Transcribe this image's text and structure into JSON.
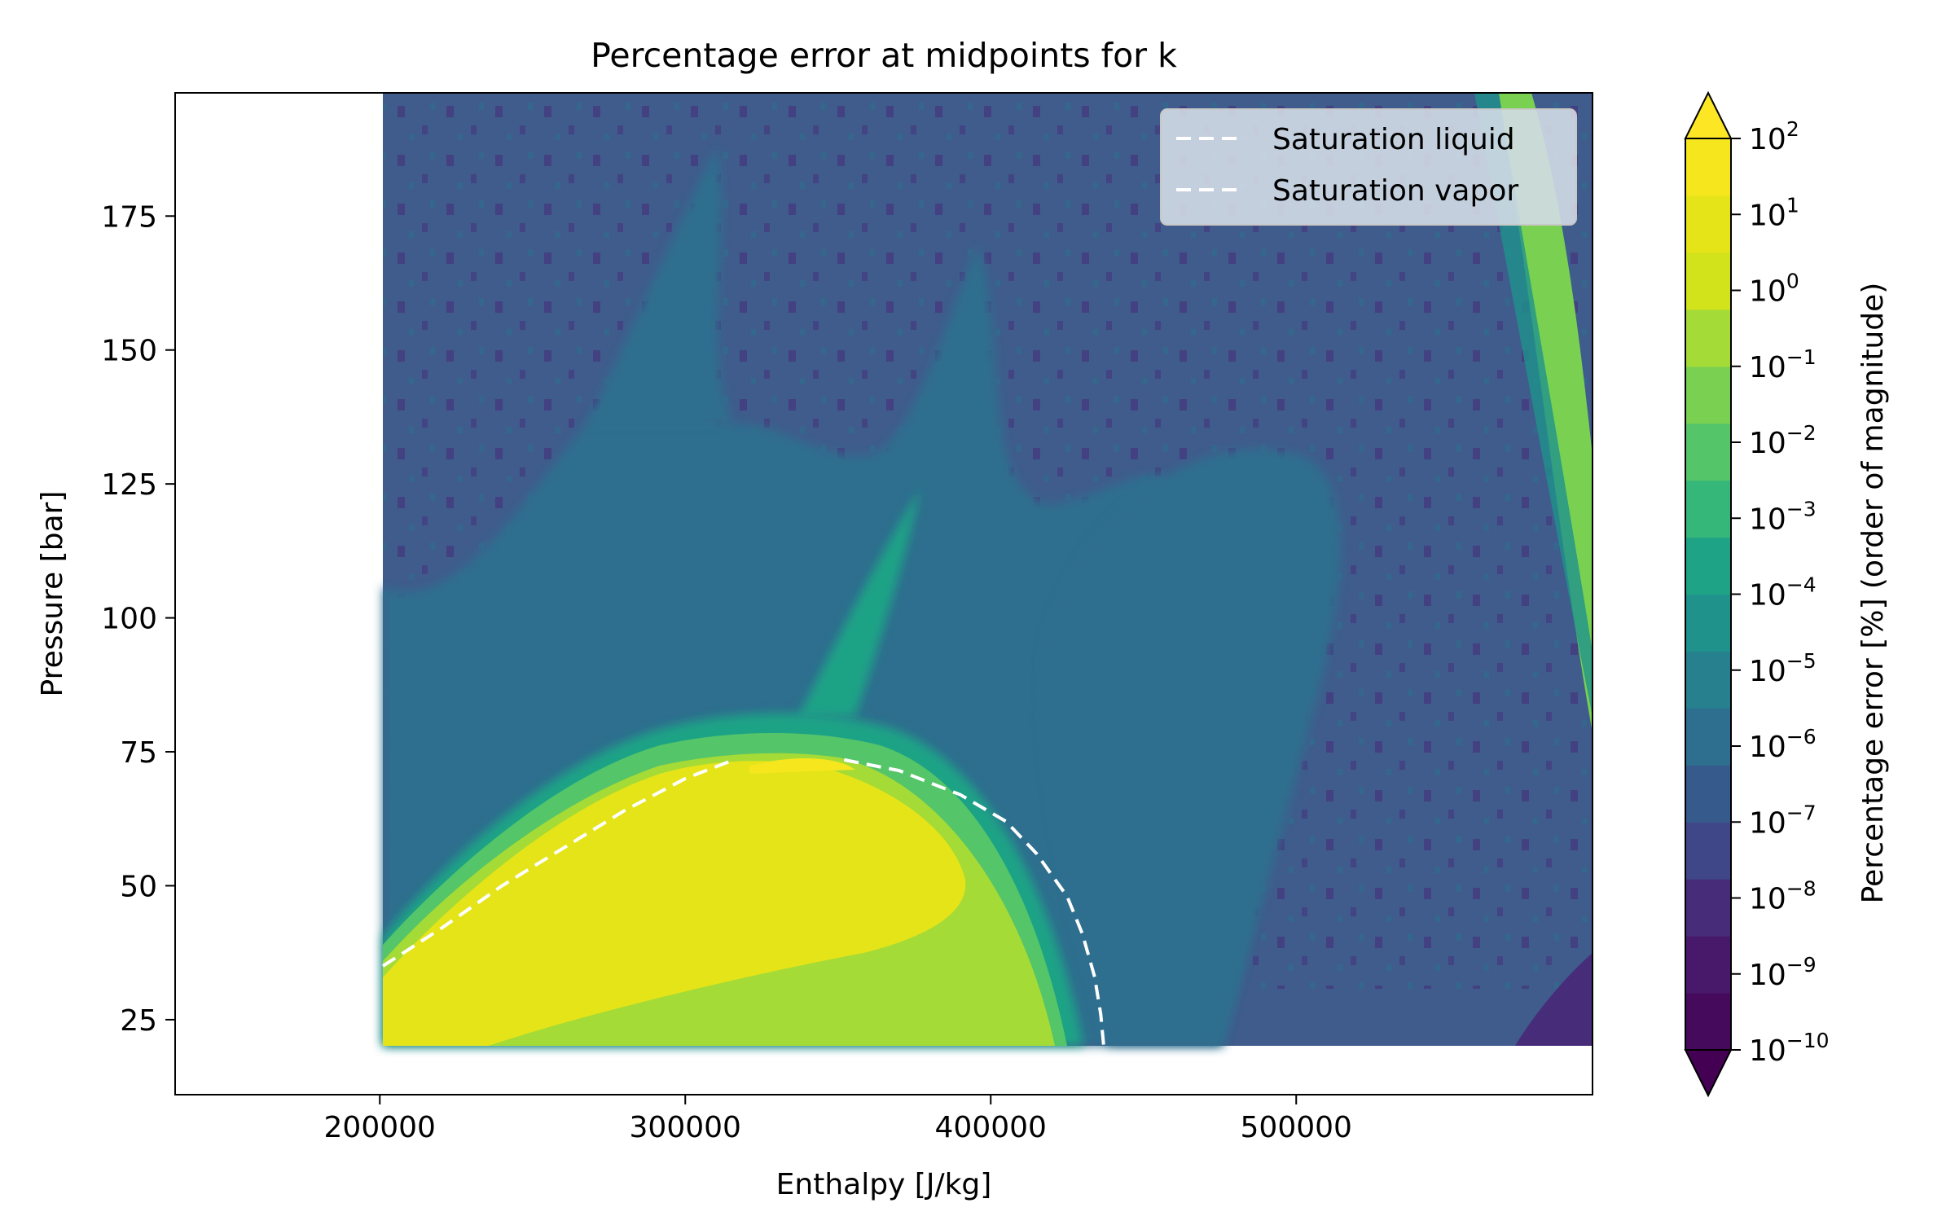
{
  "chart_data": {
    "type": "heatmap",
    "title": "Percentage error at midpoints for k",
    "xlabel": "Enthalpy [J/kg]",
    "ylabel": "Pressure [bar]",
    "xlim": [
      133000,
      597000
    ],
    "ylim": [
      11,
      198
    ],
    "data_xrange": [
      201000,
      597000
    ],
    "data_yrange": [
      20,
      198
    ],
    "x_ticks": [
      {
        "value": 200000,
        "label": "200000"
      },
      {
        "value": 300000,
        "label": "300000"
      },
      {
        "value": 400000,
        "label": "400000"
      },
      {
        "value": 500000,
        "label": "500000"
      }
    ],
    "y_ticks": [
      {
        "value": 25,
        "label": "25"
      },
      {
        "value": 50,
        "label": "50"
      },
      {
        "value": 75,
        "label": "75"
      },
      {
        "value": 100,
        "label": "100"
      },
      {
        "value": 125,
        "label": "125"
      },
      {
        "value": 150,
        "label": "150"
      },
      {
        "value": 175,
        "label": "175"
      }
    ],
    "grid": false,
    "legend": {
      "placement": "upper right",
      "entries": [
        {
          "label": "Saturation liquid",
          "color": "#ffffff",
          "style": "dashed"
        },
        {
          "label": "Saturation vapor",
          "color": "#ffffff",
          "style": "dashed"
        }
      ]
    },
    "colorbar": {
      "label": "Percentage error [%] (order of magnitude)",
      "scale": "log",
      "extend": "both",
      "levels": [
        {
          "base": "10",
          "exp": "−10",
          "value": -10
        },
        {
          "base": "10",
          "exp": "−9",
          "value": -9
        },
        {
          "base": "10",
          "exp": "−8",
          "value": -8
        },
        {
          "base": "10",
          "exp": "−7",
          "value": -7
        },
        {
          "base": "10",
          "exp": "−6",
          "value": -6
        },
        {
          "base": "10",
          "exp": "−5",
          "value": -5
        },
        {
          "base": "10",
          "exp": "−4",
          "value": -4
        },
        {
          "base": "10",
          "exp": "−3",
          "value": -3
        },
        {
          "base": "10",
          "exp": "−2",
          "value": -2
        },
        {
          "base": "10",
          "exp": "−1",
          "value": -1
        },
        {
          "base": "10",
          "exp": "0",
          "value": 0
        },
        {
          "base": "10",
          "exp": "1",
          "value": 1
        },
        {
          "base": "10",
          "exp": "2",
          "value": 2
        }
      ],
      "colors": [
        "#450a5c",
        "#48196b",
        "#472c7a",
        "#3f4788",
        "#365a8c",
        "#2e6e8e",
        "#27808e",
        "#1f928c",
        "#1fa386",
        "#35b779",
        "#54c568",
        "#7ad151",
        "#a5db36",
        "#d2e21b",
        "#e5e419",
        "#f5e61e"
      ],
      "under_color": "#440154",
      "over_color": "#fde725"
    },
    "saturation_liquid": [
      [
        201000,
        35
      ],
      [
        220000,
        42
      ],
      [
        240000,
        50
      ],
      [
        260000,
        57
      ],
      [
        280000,
        64
      ],
      [
        300000,
        70
      ],
      [
        315000,
        73.3
      ]
    ],
    "saturation_vapor": [
      [
        352000,
        73.5
      ],
      [
        370000,
        71.5
      ],
      [
        390000,
        67
      ],
      [
        405000,
        62
      ],
      [
        415000,
        56
      ],
      [
        425000,
        48
      ],
      [
        430000,
        41
      ],
      [
        434000,
        33
      ],
      [
        436000,
        26
      ],
      [
        437000,
        20
      ]
    ]
  }
}
